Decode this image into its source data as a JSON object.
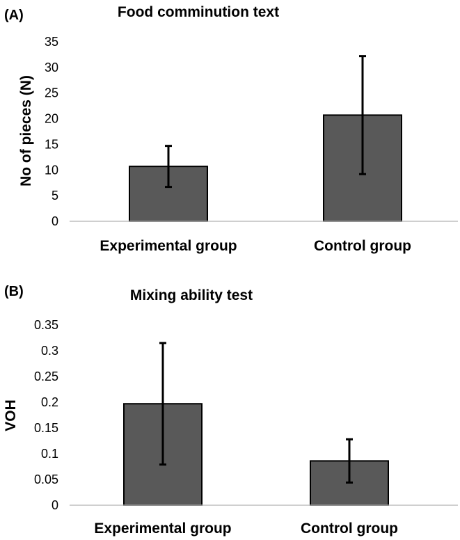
{
  "chart_data": [
    {
      "panel": "(A)",
      "type": "bar",
      "title": "Food comminution text",
      "xlabel": "",
      "ylabel": "No of pieces (N)",
      "ylim": [
        0,
        35
      ],
      "yticks": [
        0,
        5,
        10,
        15,
        20,
        25,
        30,
        35
      ],
      "categories": [
        "Experimental group",
        "Control group"
      ],
      "values": [
        10.7,
        20.7
      ],
      "errors": [
        4.0,
        11.5
      ],
      "grid": false,
      "bar_color": "#595959"
    },
    {
      "panel": "(B)",
      "type": "bar",
      "title": "Mixing ability test",
      "xlabel": "",
      "ylabel": "VOH",
      "ylim": [
        0,
        0.35
      ],
      "yticks": [
        "0",
        "0.05",
        "0.1",
        "0.15",
        "0.2",
        "0.25",
        "0.3",
        "0.35"
      ],
      "categories": [
        "Experimental group",
        "Control group"
      ],
      "values": [
        0.197,
        0.086
      ],
      "errors": [
        0.118,
        0.042
      ],
      "grid": false,
      "bar_color": "#595959"
    }
  ]
}
